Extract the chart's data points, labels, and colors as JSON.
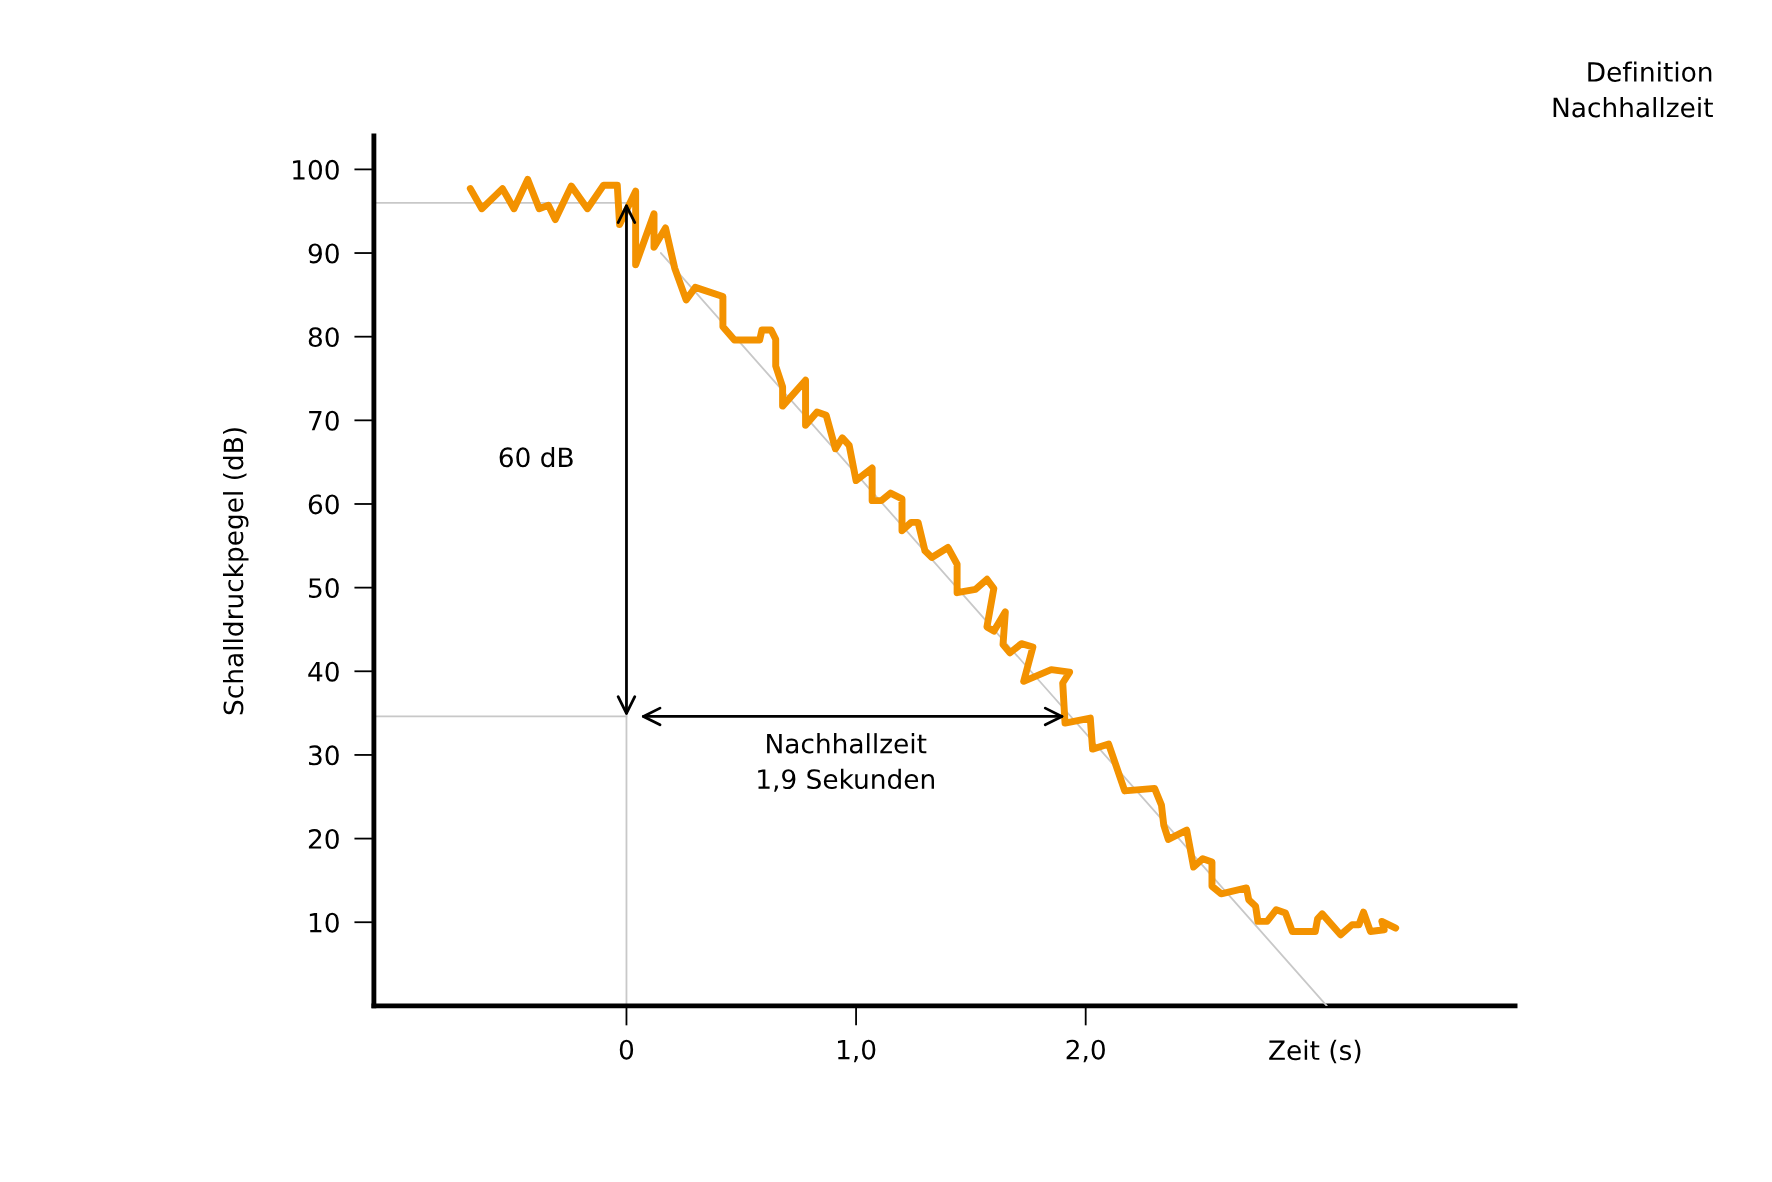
{
  "chart_data": {
    "type": "line",
    "title": "Definition\nNachhallzeit",
    "xlabel": "Zeit (s)",
    "ylabel": "Schalldruckpegel (dB)",
    "xlim": [
      -1.1,
      3.87
    ],
    "ylim": [
      0,
      104
    ],
    "xticks": [
      0,
      {
        "value": 1,
        "label": "1,0"
      },
      {
        "value": 2,
        "label": "2,0"
      }
    ],
    "yticks": [
      10,
      20,
      30,
      40,
      50,
      60,
      70,
      80,
      90,
      100
    ],
    "grid": false,
    "legend": false,
    "marker": "none",
    "line_style": "solid",
    "series": [
      {
        "color": "#f39200",
        "x": [
          -0.68,
          -0.63,
          -0.54,
          -0.49,
          -0.43,
          -0.38,
          -0.34,
          -0.31,
          -0.24,
          -0.17,
          -0.1,
          -0.04,
          -0.03,
          0.04,
          0.04,
          0.12,
          0.12,
          0.17,
          0.21,
          0.26,
          0.3,
          0.42,
          0.42,
          0.47,
          0.58,
          0.59,
          0.63,
          0.65,
          0.65,
          0.68,
          0.68,
          0.78,
          0.78,
          0.83,
          0.87,
          0.91,
          0.94,
          0.97,
          1.0,
          1.07,
          1.07,
          1.11,
          1.15,
          1.2,
          1.2,
          1.24,
          1.27,
          1.3,
          1.33,
          1.4,
          1.44,
          1.44,
          1.52,
          1.57,
          1.6,
          1.57,
          1.6,
          1.65,
          1.64,
          1.67,
          1.72,
          1.77,
          1.73,
          1.85,
          1.93,
          1.9,
          1.91,
          2.02,
          2.03,
          2.1,
          2.17,
          2.3,
          2.33,
          2.34,
          2.36,
          2.44,
          2.47,
          2.51,
          2.55,
          2.55,
          2.59,
          2.7,
          2.71,
          2.74,
          2.75,
          2.79,
          2.83,
          2.87,
          2.9,
          3.0,
          3.01,
          3.03,
          3.11,
          3.16,
          3.19,
          3.21,
          3.24,
          3.3,
          3.29,
          3.35
        ],
        "values": [
          97.7,
          95.3,
          97.7,
          95.3,
          98.8,
          95.3,
          95.7,
          94.0,
          98.0,
          95.3,
          98.1,
          98.1,
          93.4,
          97.4,
          88.6,
          94.7,
          90.7,
          93.0,
          88.2,
          84.4,
          85.9,
          84.8,
          81.2,
          79.6,
          79.6,
          80.8,
          80.8,
          79.7,
          76.5,
          74.0,
          71.7,
          74.8,
          69.4,
          71.0,
          70.6,
          66.6,
          67.9,
          67.0,
          62.8,
          64.3,
          60.4,
          60.4,
          61.3,
          60.6,
          56.8,
          57.8,
          57.8,
          54.4,
          53.6,
          54.8,
          52.8,
          49.4,
          49.8,
          51.0,
          49.9,
          45.3,
          44.8,
          47.1,
          43.2,
          42.2,
          43.3,
          42.9,
          38.8,
          40.2,
          39.9,
          38.6,
          33.8,
          34.4,
          30.7,
          31.3,
          25.7,
          26.0,
          24.0,
          21.6,
          19.9,
          21.0,
          16.6,
          17.6,
          17.2,
          14.3,
          13.4,
          14.1,
          12.7,
          11.9,
          10.1,
          10.1,
          11.5,
          11.1,
          8.9,
          8.9,
          10.4,
          11.0,
          8.5,
          9.7,
          9.7,
          11.2,
          8.9,
          9.1,
          10.1,
          9.3
        ]
      },
      {
        "color": "#c8c8c8",
        "x": [
          0.15,
          3.05
        ],
        "values": [
          90,
          0
        ]
      }
    ],
    "ref_lines": [
      {
        "axis": "y",
        "value": 96,
        "color": "#c8c8c8"
      },
      {
        "axis": "y",
        "value": 34.6,
        "color": "#c8c8c8"
      },
      {
        "axis": "x",
        "value": 0,
        "color": "#c8c8c8"
      }
    ],
    "annotations": [
      "60 dB",
      "Nachhallzeit\n1,9 Sekunden"
    ]
  }
}
